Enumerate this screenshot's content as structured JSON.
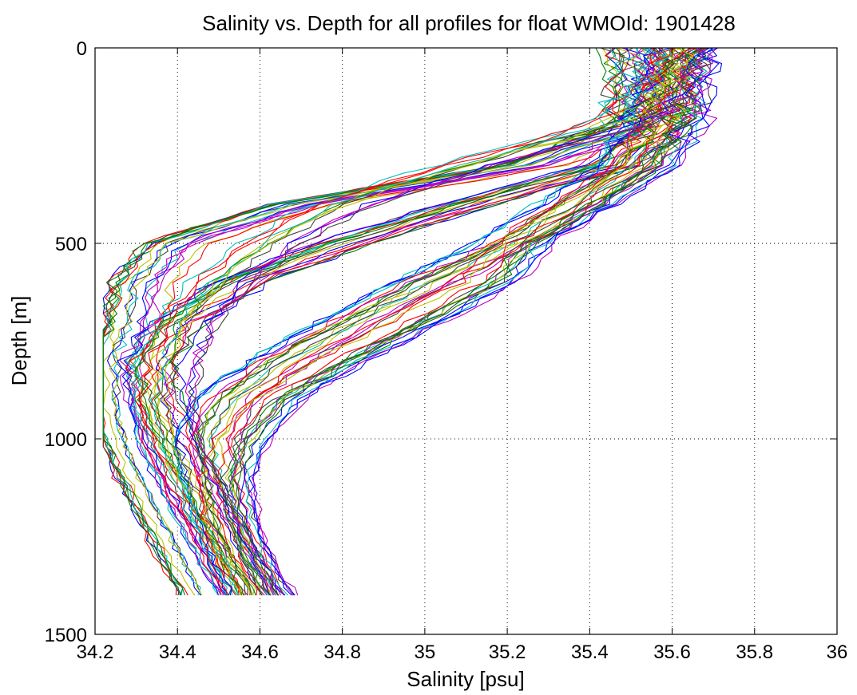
{
  "chart_data": {
    "type": "line",
    "title": "Salinity vs. Depth for all profiles for float WMOId: 1901428",
    "xlabel": "Salinity [psu]",
    "ylabel": "Depth [m]",
    "xlim": [
      34.2,
      36
    ],
    "ylim": [
      0,
      1500
    ],
    "y_reversed": true,
    "grid": "dotted",
    "legend": "none",
    "xticks": [
      "34.2",
      "34.4",
      "34.6",
      "34.8",
      "35",
      "35.2",
      "35.4",
      "35.6",
      "35.8",
      "36"
    ],
    "yticks": [
      "0",
      "500",
      "1000",
      "1500"
    ],
    "series_colors": [
      "#0000ff",
      "#008000",
      "#ff0000",
      "#00bfbf",
      "#bf00bf",
      "#bfbf00",
      "#404040"
    ],
    "profile_count": 84,
    "depth_levels": [
      0,
      100,
      200,
      300,
      400,
      500,
      600,
      700,
      800,
      900,
      1000,
      1100,
      1200,
      1300,
      1400
    ],
    "profile_groups": [
      {
        "count": 20,
        "salinity": [
          35.5,
          35.53,
          35.52,
          35.27,
          34.7,
          34.4,
          34.32,
          34.3,
          34.27,
          34.27,
          34.29,
          34.33,
          34.38,
          34.43,
          34.48
        ]
      },
      {
        "count": 18,
        "salinity": [
          35.58,
          35.58,
          35.55,
          35.45,
          35.1,
          34.8,
          34.55,
          34.4,
          34.33,
          34.34,
          34.38,
          34.43,
          34.48,
          34.53,
          34.58
        ]
      },
      {
        "count": 18,
        "salinity": [
          35.62,
          35.6,
          35.57,
          35.5,
          35.35,
          35.2,
          35.0,
          34.82,
          34.65,
          34.52,
          34.47,
          34.49,
          34.51,
          34.55,
          34.6
        ]
      },
      {
        "count": 16,
        "salinity": [
          35.65,
          35.63,
          35.6,
          35.55,
          35.4,
          35.24,
          35.16,
          34.98,
          34.8,
          34.64,
          34.56,
          34.52,
          34.53,
          34.56,
          34.62
        ]
      },
      {
        "count": 12,
        "salinity": [
          35.62,
          35.58,
          35.45,
          35.1,
          34.8,
          34.62,
          34.5,
          34.42,
          34.38,
          34.36,
          34.38,
          34.42,
          34.47,
          34.52,
          34.57
        ]
      }
    ]
  }
}
